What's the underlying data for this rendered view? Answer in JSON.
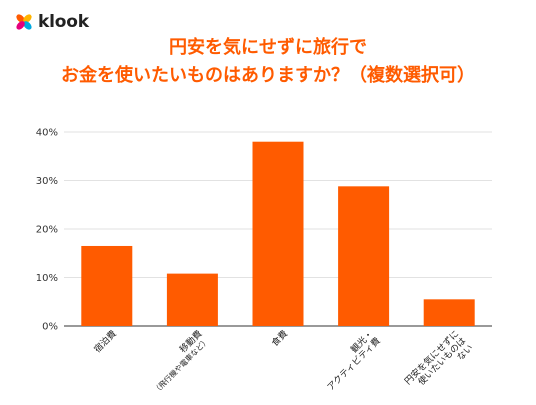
{
  "brand": {
    "name": "klook",
    "colors": [
      "#ff5b00",
      "#ffb400",
      "#00a9e0",
      "#e5007d"
    ]
  },
  "title_lines": [
    "円安を気にせずに旅行で",
    "お金を使いたいものはありますか？（複数選択可）"
  ],
  "chart_data": {
    "type": "bar",
    "title": "円安を気にせずに旅行でお金を使いたいものはありますか？（複数選択可）",
    "categories": [
      "宿泊費",
      "移動費（飛行機や電車など）",
      "食費",
      "観光・アクティビティ費",
      "円安を気にせずに使いたいものはない"
    ],
    "category_label_lines": [
      [
        "宿泊費"
      ],
      [
        "移動費",
        "（飛行機や電車など）"
      ],
      [
        "食費"
      ],
      [
        "観光・",
        "アクティビティ費"
      ],
      [
        "円安を気にせずに",
        "使いたいものは",
        "ない"
      ]
    ],
    "values": [
      16.5,
      10.8,
      38.0,
      28.8,
      5.5
    ],
    "unit": "%",
    "ylim": [
      0,
      40
    ],
    "yticks": [
      0,
      10,
      20,
      30,
      40
    ],
    "ytick_labels": [
      "0%",
      "10%",
      "20%",
      "30%",
      "40%"
    ],
    "xlabel": "",
    "ylabel": "",
    "grid": true,
    "bar_color": "#ff5b00",
    "legend": "none"
  }
}
